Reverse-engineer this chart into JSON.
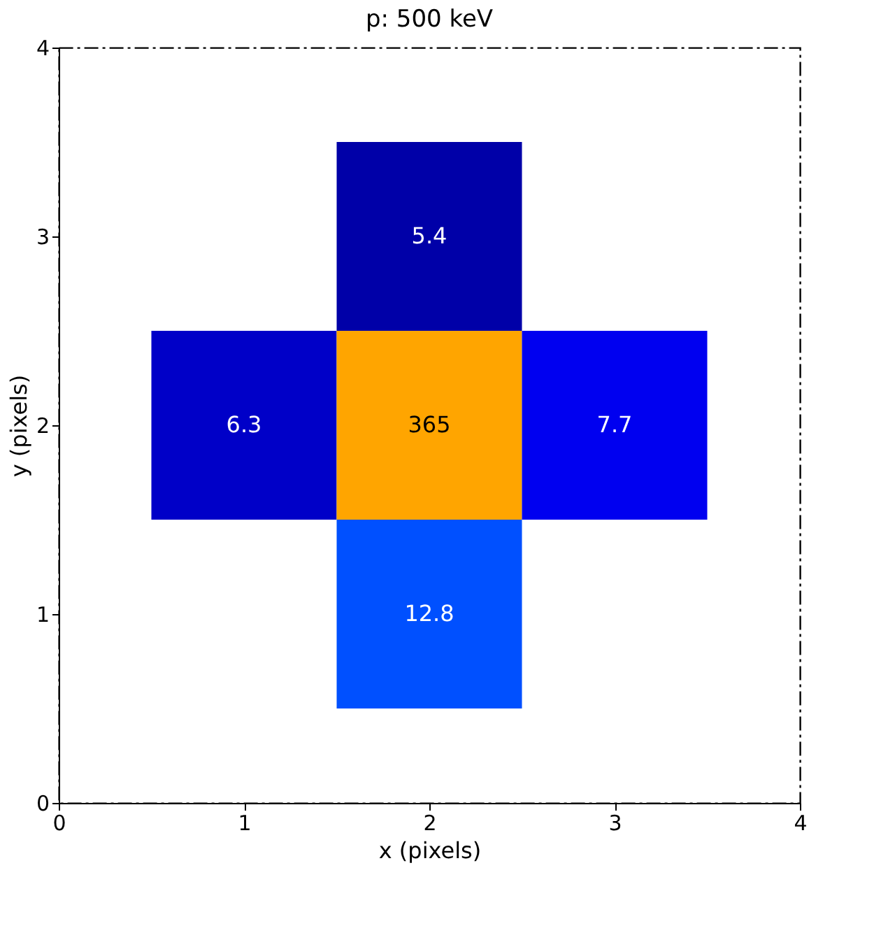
{
  "chart_data": {
    "type": "heatmap",
    "title": "p: 500 keV",
    "xlabel": "x (pixels)",
    "ylabel": "y (pixels)",
    "x": [
      1,
      2,
      3
    ],
    "y": [
      3,
      2,
      1
    ],
    "cells": [
      [
        null,
        5.4,
        null
      ],
      [
        6.3,
        365,
        7.7
      ],
      [
        null,
        12.8,
        null
      ]
    ],
    "colors": [
      [
        null,
        "#0000a8",
        null
      ],
      [
        "#0000c8",
        "#ffa500",
        "#0000f0"
      ],
      [
        null,
        "#0050ff",
        null
      ]
    ],
    "data_labels": true,
    "xlim": [
      0,
      4
    ],
    "ylim": [
      0,
      4
    ],
    "xticks": [
      0,
      1,
      2,
      3,
      4
    ],
    "yticks": [
      0,
      1,
      2,
      3,
      4
    ],
    "grid": false
  }
}
